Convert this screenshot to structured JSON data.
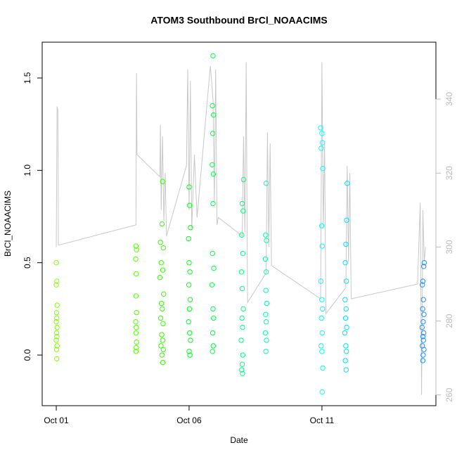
{
  "chart_data": {
    "type": "scatter",
    "title": "ATOM3 Southbound BrCl_NOAACIMS",
    "x_label": "Date",
    "y_label": "BrCl_NOAACIMS",
    "xlim": [
      -0.53,
      14.29
    ],
    "xticks": [
      {
        "value": 0,
        "label": "Oct 01"
      },
      {
        "value": 5,
        "label": "Oct 06"
      },
      {
        "value": 10,
        "label": "Oct 11"
      }
    ],
    "ylim": [
      -0.274,
      1.694
    ],
    "yticks": [
      {
        "value": 0,
        "label": "0.0"
      },
      {
        "value": 0.5,
        "label": "0.5"
      },
      {
        "value": 1,
        "label": "1.0"
      },
      {
        "value": 1.5,
        "label": "1.5"
      }
    ],
    "y2lim": [
      257.1,
      355.4
    ],
    "y2ticks": [
      260,
      280,
      300,
      320,
      340
    ],
    "series": [
      {
        "color": "#80ff00",
        "x": [
          0.0,
          0.02,
          0.0,
          0.03,
          0.01,
          0.02,
          0.0,
          0.03,
          0.01,
          0.02,
          0.0,
          0.03,
          0.01,
          0.02
        ],
        "values": [
          0.5,
          0.4,
          0.38,
          0.27,
          0.23,
          0.2,
          0.18,
          0.15,
          0.12,
          0.1,
          0.08,
          0.05,
          0.03,
          -0.02
        ]
      },
      {
        "color": "#55ff00",
        "x": [
          3.0,
          3.02,
          2.99,
          3.01,
          3.0,
          3.02,
          2.99,
          3.01,
          3.0,
          3.02,
          3.01,
          3.0
        ],
        "values": [
          0.59,
          0.57,
          0.52,
          0.44,
          0.32,
          0.23,
          0.18,
          0.15,
          0.12,
          0.07,
          0.04,
          0.02
        ]
      },
      {
        "color": "#33ff00",
        "x": [
          4.0,
          3.98,
          3.92,
          4.03,
          3.95,
          4.01,
          3.9,
          4.04,
          3.96,
          3.99,
          3.93,
          4.02,
          3.97,
          4.0,
          3.94,
          4.03,
          3.98,
          4.01
        ],
        "values": [
          0.94,
          0.71,
          0.61,
          0.58,
          0.5,
          0.46,
          0.42,
          0.33,
          0.28,
          0.25,
          0.2,
          0.17,
          0.11,
          0.08,
          0.05,
          0.03,
          0.0,
          -0.04
        ]
      },
      {
        "color": "#00ff1a",
        "x": [
          5.0,
          5.02,
          5.05,
          4.98,
          5.0,
          5.03,
          4.99,
          5.04,
          5.01,
          4.98,
          5.02,
          5.05,
          5.0,
          5.03
        ],
        "values": [
          0.91,
          0.81,
          0.69,
          0.63,
          0.5,
          0.45,
          0.38,
          0.3,
          0.25,
          0.18,
          0.12,
          0.08,
          0.02,
          0.0
        ]
      },
      {
        "color": "#00ff44",
        "x": [
          5.9,
          5.88,
          5.92,
          5.89,
          5.87,
          5.91,
          5.9,
          5.88,
          5.93,
          5.86,
          5.9,
          5.92,
          5.89,
          5.91,
          5.88
        ],
        "values": [
          1.62,
          1.35,
          1.3,
          1.2,
          1.03,
          0.98,
          0.82,
          0.55,
          0.47,
          0.38,
          0.25,
          0.2,
          0.12,
          0.05,
          0.02
        ]
      },
      {
        "color": "#00ff80",
        "x": [
          7.05,
          7.0,
          7.03,
          6.98,
          7.02,
          6.97,
          7.0,
          7.04,
          6.99,
          7.01,
          6.96,
          7.02,
          7.0,
          6.98,
          7.01
        ],
        "values": [
          0.95,
          0.82,
          0.78,
          0.65,
          0.55,
          0.45,
          0.36,
          0.25,
          0.2,
          0.15,
          0.08,
          0.0,
          -0.05,
          -0.08,
          -0.1
        ]
      },
      {
        "color": "#00ffaa",
        "x": [
          7.9,
          7.88,
          7.91,
          7.87,
          7.9,
          7.89,
          7.92,
          7.88,
          7.9,
          7.87,
          7.91,
          7.89
        ],
        "values": [
          0.93,
          0.65,
          0.62,
          0.52,
          0.45,
          0.35,
          0.28,
          0.22,
          0.18,
          0.12,
          0.08,
          0.02
        ]
      },
      {
        "color": "#00ffff",
        "x": [
          9.95,
          10.0,
          10.02,
          9.97,
          10.03,
          9.99,
          10.01,
          9.96,
          10.0,
          10.02,
          9.98,
          10.01,
          9.97,
          10.0,
          10.03,
          10.01
        ],
        "values": [
          1.23,
          1.2,
          1.15,
          1.12,
          1.01,
          0.7,
          0.59,
          0.4,
          0.3,
          0.25,
          0.2,
          0.12,
          0.05,
          0.02,
          -0.07,
          -0.2
        ]
      },
      {
        "color": "#00e0ff",
        "x": [
          10.95,
          10.93,
          10.9,
          10.88,
          10.92,
          10.87,
          10.91,
          10.89,
          10.93,
          10.86,
          10.9,
          10.92,
          10.88,
          10.91
        ],
        "values": [
          0.93,
          0.73,
          0.6,
          0.5,
          0.4,
          0.3,
          0.25,
          0.2,
          0.15,
          0.12,
          0.05,
          0.02,
          -0.03,
          -0.08
        ]
      },
      {
        "color": "#1e90ff",
        "x": [
          13.85,
          13.83,
          13.8,
          13.78,
          13.82,
          13.79,
          13.84,
          13.81,
          13.77,
          13.83,
          13.8,
          13.82,
          13.78,
          13.84,
          13.81,
          13.8
        ],
        "values": [
          0.5,
          0.48,
          0.4,
          0.38,
          0.3,
          0.25,
          0.22,
          0.18,
          0.15,
          0.12,
          0.1,
          0.08,
          0.05,
          0.03,
          0.0,
          -0.03
        ]
      },
      {
        "color": "#c8c8c8",
        "axis": "y2",
        "x": [
          0.0,
          0.03,
          0.06,
          0.08,
          3.0,
          3.02,
          3.04,
          3.9,
          3.92,
          3.95,
          4.0,
          4.05,
          4.1,
          4.15,
          4.9,
          4.95,
          5.0,
          5.05,
          5.1,
          5.2,
          5.3,
          5.8,
          5.9,
          5.95,
          6.0,
          6.05,
          6.1,
          7.0,
          7.05,
          7.1,
          7.15,
          7.2,
          7.9,
          7.95,
          8.0,
          8.05,
          8.1,
          9.95,
          10.0,
          10.05,
          10.1,
          10.15,
          10.9,
          10.95,
          11.0,
          11.05,
          11.1,
          13.6,
          13.7,
          13.75,
          13.8,
          13.85,
          13.9
        ],
        "values": [
          300,
          338,
          337,
          300.5,
          306,
          347,
          325,
          319,
          333,
          310,
          330,
          307,
          320,
          303,
          322,
          348,
          310,
          345,
          305,
          325,
          308,
          349,
          340,
          312,
          348,
          306,
          308,
          303,
          330,
          304,
          350,
          285,
          293,
          331,
          300,
          328,
          295,
          286,
          350,
          305,
          328,
          282,
          289,
          322,
          296,
          320,
          286,
          290,
          312,
          260,
          310,
          296,
          300
        ]
      }
    ]
  }
}
